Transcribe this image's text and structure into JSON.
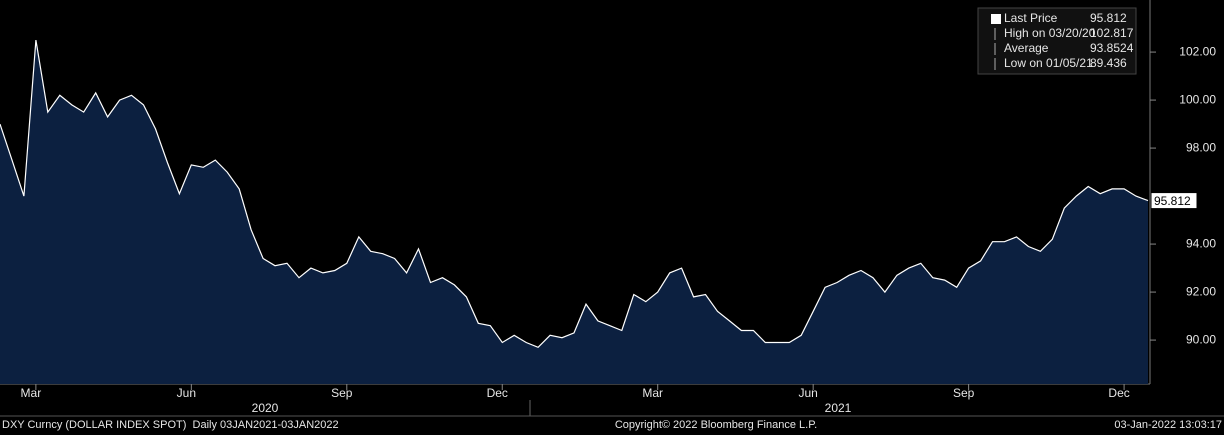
{
  "chart_data": {
    "type": "area",
    "categories": [
      null,
      null,
      null,
      "Mar",
      null,
      null,
      null,
      null,
      null,
      null,
      null,
      null,
      null,
      null,
      null,
      null,
      "Jun",
      null,
      null,
      null,
      null,
      null,
      null,
      null,
      null,
      null,
      null,
      null,
      null,
      "Sep",
      null,
      null,
      null,
      null,
      null,
      null,
      null,
      null,
      null,
      null,
      null,
      null,
      "Dec",
      null,
      null,
      null,
      null,
      null,
      null,
      null,
      null,
      null,
      null,
      null,
      null,
      "Mar",
      null,
      null,
      null,
      null,
      null,
      null,
      null,
      null,
      null,
      null,
      null,
      null,
      "Jun",
      null,
      null,
      null,
      null,
      null,
      null,
      null,
      null,
      null,
      null,
      null,
      null,
      "Sep",
      null,
      null,
      null,
      null,
      null,
      null,
      null,
      null,
      null,
      null,
      null,
      null,
      "Dec",
      null,
      null
    ],
    "year_labels": [
      "2020",
      "2021"
    ],
    "series": [
      {
        "name": "Last Price",
        "color": "#ffffff",
        "fill": "#0c2040",
        "values": [
          99.0,
          97.5,
          96.0,
          102.5,
          99.5,
          100.2,
          99.8,
          99.5,
          100.3,
          99.3,
          100.0,
          100.2,
          99.8,
          98.8,
          97.4,
          96.1,
          97.3,
          97.2,
          97.5,
          97.0,
          96.3,
          94.6,
          93.4,
          93.1,
          93.2,
          92.6,
          93.0,
          92.8,
          92.9,
          93.2,
          94.3,
          93.7,
          93.6,
          93.4,
          92.8,
          93.8,
          92.4,
          92.6,
          92.3,
          91.8,
          90.7,
          90.6,
          89.9,
          90.2,
          89.9,
          89.7,
          90.2,
          90.1,
          90.3,
          91.5,
          90.8,
          90.6,
          90.4,
          91.9,
          91.6,
          92.0,
          92.8,
          93.0,
          91.8,
          91.9,
          91.2,
          90.8,
          90.4,
          90.4,
          89.9,
          89.9,
          89.9,
          90.2,
          91.2,
          92.2,
          92.4,
          92.7,
          92.9,
          92.6,
          92.0,
          92.7,
          93.0,
          93.2,
          92.6,
          92.5,
          92.2,
          93.0,
          93.3,
          94.1,
          94.1,
          94.3,
          93.9,
          93.7,
          94.2,
          95.5,
          96.0,
          96.4,
          96.1,
          96.3,
          96.3,
          96.0,
          95.812
        ]
      }
    ],
    "ylim": [
      88.17,
      104.17
    ],
    "yticks": [
      {
        "value": 90,
        "label": "90.00"
      },
      {
        "value": 92,
        "label": "92.00"
      },
      {
        "value": 94,
        "label": "94.00"
      },
      {
        "value": 98,
        "label": "98.00"
      },
      {
        "value": 100,
        "label": "100.00"
      },
      {
        "value": 102,
        "label": "102.00"
      }
    ],
    "legend": [
      {
        "name": "Last Price",
        "value": 95.812
      },
      {
        "name": "High on 03/20/20",
        "value": 102.817
      },
      {
        "name": "Average",
        "value": 93.8524
      },
      {
        "name": "Low on 01/05/21",
        "value": 89.436
      }
    ],
    "footer": {
      "left": "DXY Curncy (DOLLAR INDEX SPOT)  Daily 03JAN2021-03JAN2022",
      "center": "Copyright© 2022 Bloomberg Finance L.P.",
      "right": "03-Jan-2022 13:03:17"
    }
  }
}
